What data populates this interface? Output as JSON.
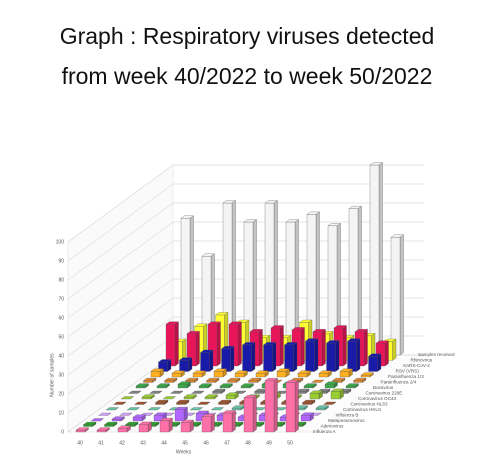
{
  "chart_data": {
    "type": "bar3d",
    "title": [
      "Graph  : Respiratory viruses detected",
      "from week 40/2022 to week 50/2022"
    ],
    "x_label": "Weeks",
    "y_label": "Number of samples",
    "categories": [
      "40",
      "41",
      "42",
      "43",
      "44",
      "45",
      "46",
      "47",
      "48",
      "49",
      "50"
    ],
    "ylim": [
      0,
      100
    ],
    "yticks": [
      0,
      10,
      20,
      30,
      40,
      50,
      60,
      70,
      80,
      90,
      100
    ],
    "grid": true,
    "series": [
      {
        "name": "Samples received",
        "color": "#f4f4f4",
        "values": [
          72,
          52,
          80,
          70,
          80,
          70,
          74,
          68,
          77,
          100,
          62
        ]
      },
      {
        "name": "Rhinovirus",
        "color": "#ffff33",
        "values": [
          10,
          18,
          24,
          20,
          12,
          12,
          20,
          14,
          12,
          13,
          10
        ]
      },
      {
        "name": "SARS-CoV-2",
        "color": "#e8155a",
        "values": [
          22,
          17,
          22,
          22,
          18,
          20,
          19,
          18,
          20,
          18,
          12
        ]
      },
      {
        "name": "RSV (VRS)",
        "color": "#1a1aa8",
        "values": [
          5,
          6,
          10,
          12,
          14,
          14,
          14,
          16,
          15,
          16,
          8
        ]
      },
      {
        "name": "Parainfluenza 1/3",
        "color": "#ffb020",
        "values": [
          3,
          2,
          2,
          3,
          2,
          2,
          3,
          2,
          2,
          3,
          1
        ]
      },
      {
        "name": "Parainfluenza 2/4",
        "color": "#e08a30",
        "values": [
          1,
          1,
          1,
          1,
          1,
          1,
          0,
          1,
          0,
          1,
          1
        ]
      },
      {
        "name": "Bocavirus",
        "color": "#3aa84a",
        "values": [
          1,
          1,
          2,
          1,
          1,
          1,
          2,
          2,
          1,
          2,
          1
        ]
      },
      {
        "name": "Coronavirus 229E",
        "color": "#808080",
        "values": [
          0,
          0,
          0,
          0,
          1,
          0,
          1,
          0,
          1,
          1,
          1
        ]
      },
      {
        "name": "Coronavirus OC43",
        "color": "#9acd32",
        "values": [
          0,
          1,
          0,
          1,
          1,
          2,
          1,
          2,
          1,
          3,
          4
        ]
      },
      {
        "name": "Coronavirus NL63",
        "color": "#a0522d",
        "values": [
          0,
          0,
          1,
          1,
          0,
          1,
          1,
          1,
          1,
          1,
          0
        ]
      },
      {
        "name": "Coronavirus HKU1",
        "color": "#66c2a5",
        "values": [
          0,
          0,
          0,
          0,
          0,
          0,
          1,
          0,
          0,
          1,
          1
        ]
      },
      {
        "name": "Influenza B",
        "color": "#d4a0ff",
        "values": [
          0,
          0,
          0,
          0,
          0,
          0,
          0,
          0,
          0,
          0,
          0
        ]
      },
      {
        "name": "Metapneumovirus",
        "color": "#b266ff",
        "values": [
          0,
          1,
          2,
          3,
          6,
          4,
          3,
          2,
          3,
          2,
          3
        ]
      },
      {
        "name": "Adenovirus",
        "color": "#2ca02c",
        "values": [
          1,
          1,
          1,
          1,
          1,
          1,
          1,
          1,
          1,
          1,
          1
        ]
      },
      {
        "name": "Influenza A",
        "color": "#ff6fa8",
        "values": [
          1,
          1,
          2,
          4,
          6,
          5,
          8,
          10,
          18,
          27,
          26
        ]
      }
    ]
  }
}
